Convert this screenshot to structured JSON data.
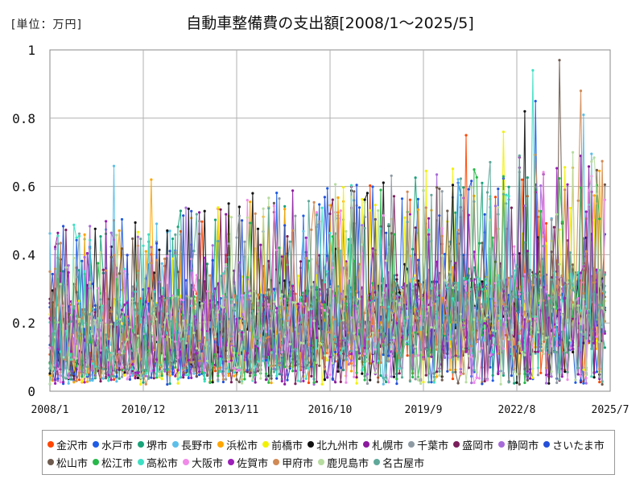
{
  "chart_data": {
    "type": "line",
    "title": "自動車整備費の支出額[2008/1～2025/5]",
    "unit_label": "[単位：万円]",
    "ylim": [
      0,
      1
    ],
    "yticks": [
      "0",
      "0.2",
      "0.4",
      "0.6",
      "0.8",
      "1"
    ],
    "yvals": [
      0,
      0.2,
      0.4,
      0.6,
      0.8,
      1.0
    ],
    "xticks": [
      "2008/1",
      "2010/12",
      "2013/11",
      "2016/10",
      "2019/9",
      "2022/8",
      "2025/7"
    ],
    "x_start": "2008/1",
    "x_end": "2025/7",
    "x_data_end": "2025/5",
    "grid": true,
    "legend_position": "bottom",
    "series": [
      {
        "name": "金沢市",
        "color": "#ff4500"
      },
      {
        "name": "水戸市",
        "color": "#1e5ce6"
      },
      {
        "name": "堺市",
        "color": "#1aa37a"
      },
      {
        "name": "長野市",
        "color": "#5bbfea"
      },
      {
        "name": "浜松市",
        "color": "#ffa500"
      },
      {
        "name": "前橋市",
        "color": "#f2f200"
      },
      {
        "name": "北九州市",
        "color": "#111111"
      },
      {
        "name": "札幌市",
        "color": "#8b1a9e"
      },
      {
        "name": "千葉市",
        "color": "#8e9aa3"
      },
      {
        "name": "盛岡市",
        "color": "#7a1f5c"
      },
      {
        "name": "静岡市",
        "color": "#a66ad9"
      },
      {
        "name": "さいたま市",
        "color": "#2450d9"
      },
      {
        "name": "松山市",
        "color": "#6e5a4e"
      },
      {
        "name": "松江市",
        "color": "#27b84a"
      },
      {
        "name": "高松市",
        "color": "#3ee0c4"
      },
      {
        "name": "大阪市",
        "color": "#f08ae8"
      },
      {
        "name": "佐賀市",
        "color": "#9b1fb8"
      },
      {
        "name": "甲府市",
        "color": "#d18a55"
      },
      {
        "name": "鹿児島市",
        "color": "#b7dca0"
      },
      {
        "name": "名古屋市",
        "color": "#5fa89a"
      }
    ],
    "peak_values": [
      {
        "series": "高松市",
        "x": "2023/2",
        "y": 0.94
      },
      {
        "series": "松山市",
        "x": "2023/12",
        "y": 0.97
      },
      {
        "series": "甲府市",
        "x": "2024/8",
        "y": 0.88
      },
      {
        "series": "水戸市",
        "x": "2023/3",
        "y": 0.85
      },
      {
        "series": "北九州市",
        "x": "2022/11",
        "y": 0.82
      },
      {
        "series": "長野市",
        "x": "2024/9",
        "y": 0.81
      },
      {
        "series": "前橋市",
        "x": "2022/3",
        "y": 0.76
      },
      {
        "series": "金沢市",
        "x": "2021/1",
        "y": 0.75
      },
      {
        "series": "堺市",
        "x": "2009/11",
        "y": 0.18
      },
      {
        "series": "長野市",
        "x": "2010/1",
        "y": 0.66
      },
      {
        "series": "浜松市",
        "x": "2011/3",
        "y": 0.62
      },
      {
        "series": "北九州市",
        "x": "2014/5",
        "y": 0.58
      }
    ]
  }
}
